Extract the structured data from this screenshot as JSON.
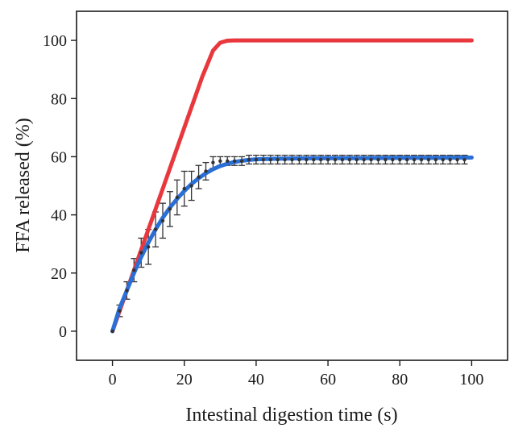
{
  "chart_data": {
    "type": "line",
    "title": "",
    "xlabel": "Intestinal digestion time (s)",
    "ylabel": "FFA released (%)",
    "xlim": [
      -10,
      110
    ],
    "ylim": [
      -10,
      110
    ],
    "xticks": [
      0,
      20,
      40,
      60,
      80,
      100
    ],
    "yticks": [
      0,
      20,
      40,
      60,
      80,
      100
    ],
    "grid": false,
    "legend": "none",
    "series": [
      {
        "color": "#e8383d",
        "style": "line",
        "x": [
          0,
          5,
          10,
          15,
          20,
          25,
          28,
          30,
          32,
          34,
          36,
          40,
          50,
          60,
          70,
          80,
          90,
          100
        ],
        "y": [
          0,
          17.5,
          35,
          52.5,
          70,
          87.5,
          96.5,
          99.2,
          99.9,
          100,
          100,
          100,
          100,
          100,
          100,
          100,
          100,
          100
        ]
      },
      {
        "color": "#2a6fd6",
        "style": "line",
        "x": [
          0,
          2,
          4,
          6,
          8,
          10,
          12,
          14,
          16,
          18,
          20,
          22,
          24,
          26,
          28,
          30,
          32,
          34,
          36,
          38,
          40,
          45,
          50,
          60,
          70,
          80,
          90,
          100
        ],
        "y": [
          0,
          8,
          14,
          20,
          25.5,
          30.5,
          35,
          39,
          42.5,
          45.5,
          48.2,
          50.6,
          52.6,
          54.3,
          55.7,
          56.8,
          57.6,
          58.2,
          58.6,
          58.9,
          59.1,
          59.3,
          59.4,
          59.5,
          59.5,
          59.6,
          59.6,
          59.7
        ]
      },
      {
        "color": "#333333",
        "style": "points-with-error",
        "x": [
          0,
          2,
          4,
          6,
          8,
          10,
          12,
          14,
          16,
          18,
          20,
          22,
          24,
          26,
          28,
          30,
          32,
          34,
          36,
          38,
          40,
          42,
          44,
          46,
          48,
          50,
          52,
          54,
          56,
          58,
          60,
          62,
          64,
          66,
          68,
          70,
          72,
          74,
          76,
          78,
          80,
          82,
          84,
          86,
          88,
          90,
          92,
          94,
          96,
          98
        ],
        "y": [
          0,
          7,
          14,
          21,
          27,
          29,
          35,
          38,
          42,
          46,
          49,
          50,
          53,
          55,
          58,
          58.5,
          58.5,
          58.5,
          58.5,
          59,
          59,
          59,
          59,
          59,
          59,
          59,
          59,
          59,
          59,
          59,
          59,
          59,
          59,
          59,
          59,
          59,
          59,
          59,
          59,
          59,
          59,
          59,
          59,
          59,
          59,
          59,
          59,
          59,
          59,
          59
        ],
        "err": [
          0,
          2,
          3,
          4,
          5,
          6,
          6,
          6,
          6,
          6,
          6,
          5,
          4,
          3,
          2,
          1.5,
          1.5,
          1.5,
          1.5,
          1.5,
          1.5,
          1.5,
          1.5,
          1.5,
          1.5,
          1.5,
          1.5,
          1.5,
          1.5,
          1.5,
          1.5,
          1.5,
          1.5,
          1.5,
          1.5,
          1.5,
          1.5,
          1.5,
          1.5,
          1.5,
          1.5,
          1.5,
          1.5,
          1.5,
          1.5,
          1.5,
          1.5,
          1.5,
          1.5,
          1.5
        ]
      }
    ]
  }
}
